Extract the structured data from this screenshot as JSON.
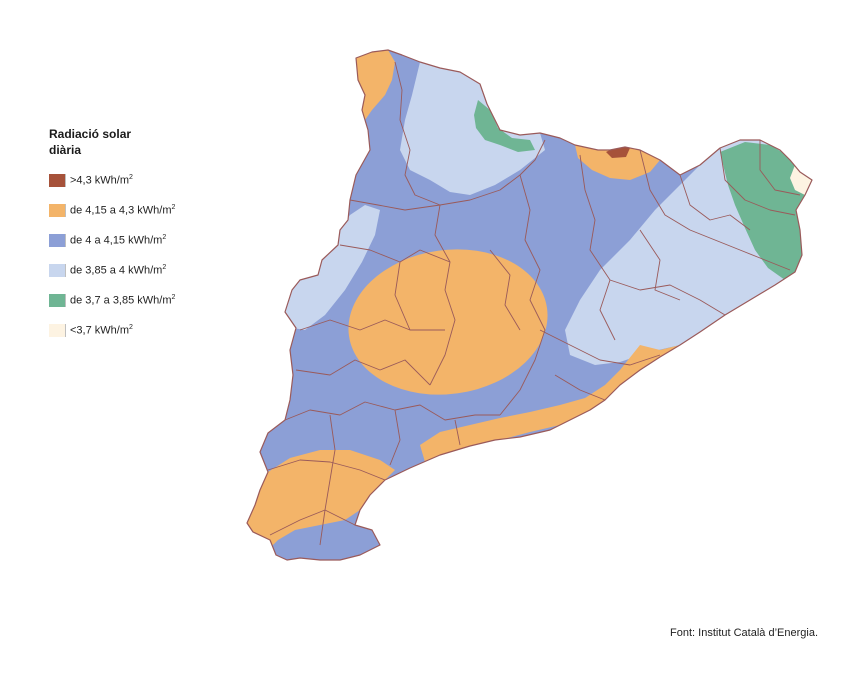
{
  "legend": {
    "title": "Radiació solar\ndiària",
    "items": [
      {
        "label": ">4,3 kWh/m",
        "sup": "2",
        "color": "#a6523a"
      },
      {
        "label": "de 4,15 a 4,3 kWh/m",
        "sup": "2",
        "color": "#f3b469"
      },
      {
        "label": "de 4 a 4,15 kWh/m",
        "sup": "2",
        "color": "#8c9fd6"
      },
      {
        "label": "de 3,85 a 4 kWh/m",
        "sup": "2",
        "color": "#c8d6ee"
      },
      {
        "label": "de 3,7 a 3,85 kWh/m",
        "sup": "2",
        "color": "#6fb594"
      },
      {
        "label": "<3,7 kWh/m",
        "sup": "2",
        "color": "#fdf3e2"
      }
    ]
  },
  "colors": {
    "border": "#9a5a5a"
  },
  "source": "Font: Institut Català d’Energia."
}
